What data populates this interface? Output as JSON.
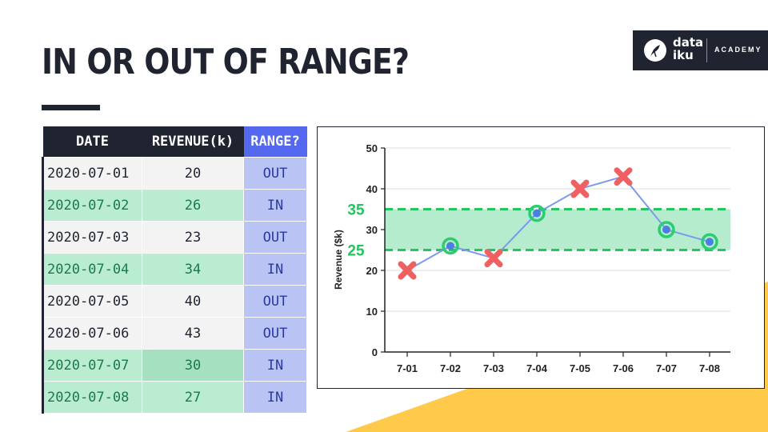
{
  "title": "IN OR OUT OF RANGE?",
  "logo": {
    "word_top": "data",
    "word_bottom": "iku",
    "tagline": "ACADEMY"
  },
  "colors": {
    "dark": "#1f2430",
    "accent_blue": "#5468f0",
    "in_green": "#b9ecd0",
    "marker_green": "#2ecc71",
    "marker_red": "#f06060",
    "line_blue": "#7a9af0",
    "yellow": "#ffc94a"
  },
  "table": {
    "headers": [
      "DATE",
      "REVENUE(k)",
      "RANGE?"
    ],
    "rows": [
      {
        "date": "2020-07-01",
        "revenue": "20",
        "range": "OUT"
      },
      {
        "date": "2020-07-02",
        "revenue": "26",
        "range": "IN"
      },
      {
        "date": "2020-07-03",
        "revenue": "23",
        "range": "OUT"
      },
      {
        "date": "2020-07-04",
        "revenue": "34",
        "range": "IN"
      },
      {
        "date": "2020-07-05",
        "revenue": "40",
        "range": "OUT"
      },
      {
        "date": "2020-07-06",
        "revenue": "43",
        "range": "OUT"
      },
      {
        "date": "2020-07-07",
        "revenue": "30",
        "range": "IN"
      },
      {
        "date": "2020-07-08",
        "revenue": "27",
        "range": "IN"
      }
    ]
  },
  "chart_data": {
    "type": "line",
    "title": "",
    "xlabel": "",
    "ylabel": "Revenue ($k)",
    "categories": [
      "7-01",
      "7-02",
      "7-03",
      "7-04",
      "7-05",
      "7-06",
      "7-07",
      "7-08"
    ],
    "values": [
      20,
      26,
      23,
      34,
      40,
      43,
      30,
      27
    ],
    "in_range": [
      false,
      true,
      false,
      true,
      false,
      false,
      true,
      true
    ],
    "ylim": [
      0,
      50
    ],
    "yticks": [
      0,
      10,
      20,
      30,
      40,
      50
    ],
    "grid": true,
    "band": {
      "low": 25,
      "high": 35,
      "low_label": "25",
      "high_label": "35"
    }
  }
}
